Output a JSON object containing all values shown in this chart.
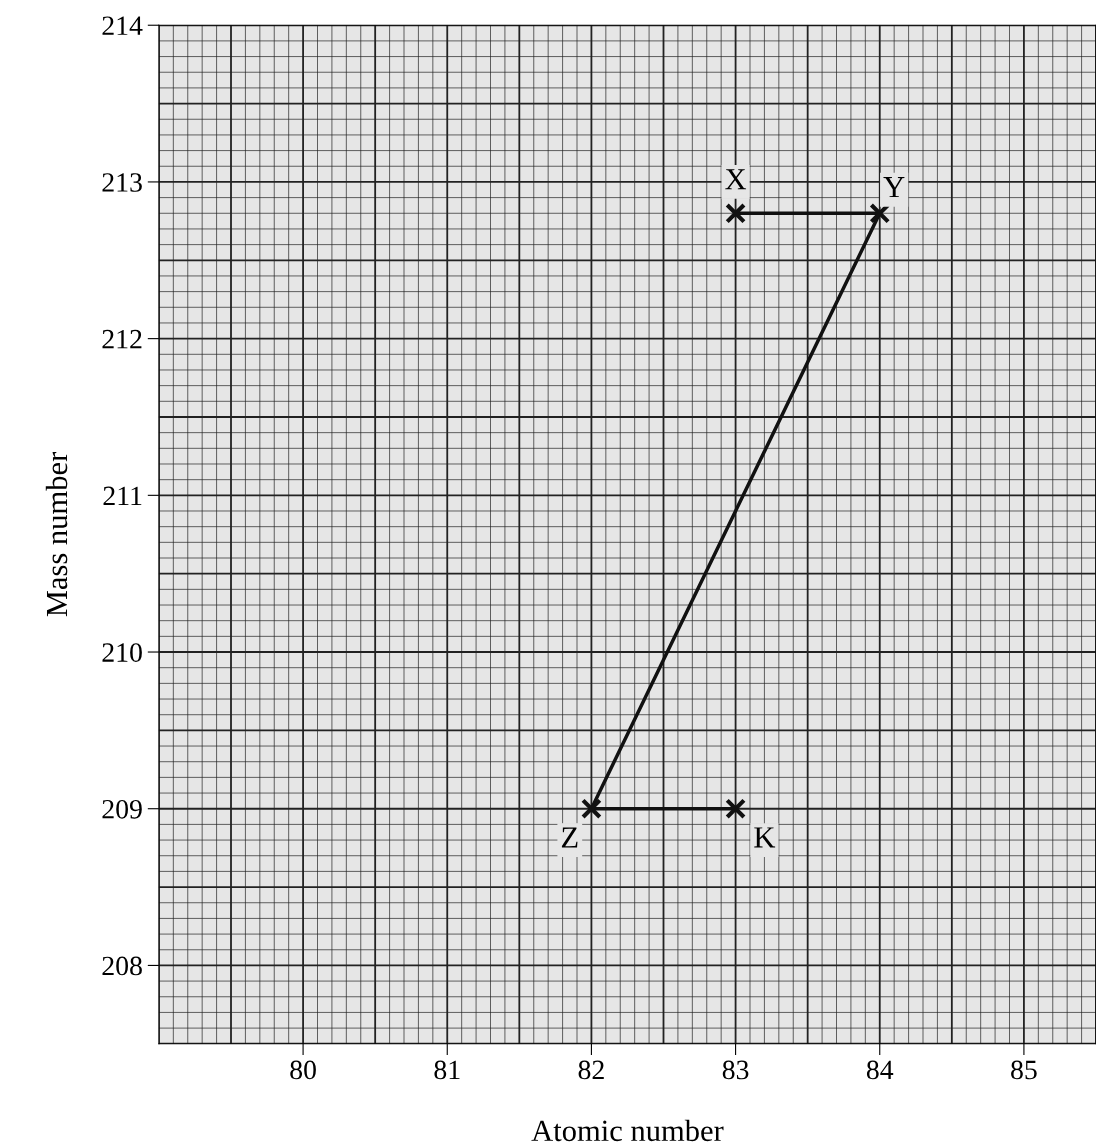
{
  "chart_data": {
    "type": "line",
    "xlabel": "Atomic number",
    "ylabel": "Mass number",
    "series": [
      {
        "x": [
          83,
          84,
          82,
          83
        ],
        "values": [
          212.8,
          212.8,
          209.0,
          209.0
        ],
        "color": "#111111"
      }
    ],
    "marker": "cross",
    "line_style": "solid",
    "grid": true,
    "xlim": [
      79,
      85.5
    ],
    "xticks": [
      80,
      81,
      82,
      83,
      84,
      85
    ],
    "ylim": [
      207.5,
      214
    ],
    "yticks": [
      208,
      209,
      210,
      211,
      212,
      213,
      214
    ],
    "annotations": [
      {
        "text": "X",
        "x": 83,
        "y": 213.0
      },
      {
        "text": "Y",
        "x": 84.1,
        "y": 212.95
      },
      {
        "text": "Z",
        "x": 81.85,
        "y": 208.8
      },
      {
        "text": "K",
        "x": 83.2,
        "y": 208.8
      }
    ]
  }
}
